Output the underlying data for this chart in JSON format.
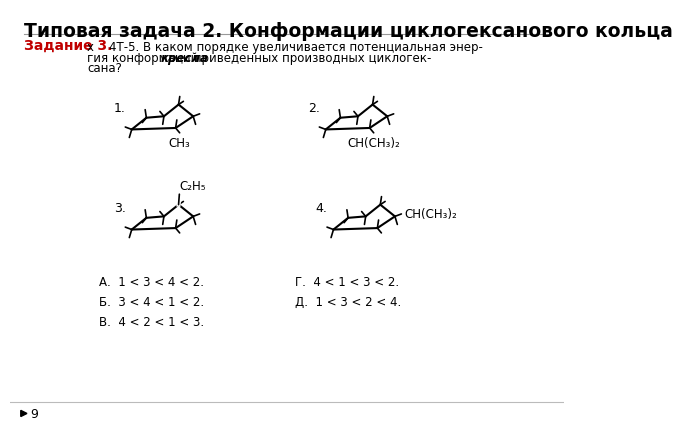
{
  "title": "Типовая задача 2. Конформации циклогексанового кольца",
  "zadanie": "Задание 3.",
  "sub1": "CH₃",
  "sub2": "CH(CH₃)₂",
  "sub3": "C₂H₅",
  "sub4": "CH(CH₃)₂",
  "answers_left": "А.  1 < 3 < 4 < 2.\nБ.  3 < 4 < 1 < 2.\nВ.  4 < 2 < 1 < 3.",
  "answers_right": "Г.  4 < 1 < 3 < 2.\nД.  1 < 3 < 2 < 4.",
  "page_num": "9",
  "bg_color": "#ffffff",
  "title_color": "#000000",
  "zadanie_color": "#c00000"
}
